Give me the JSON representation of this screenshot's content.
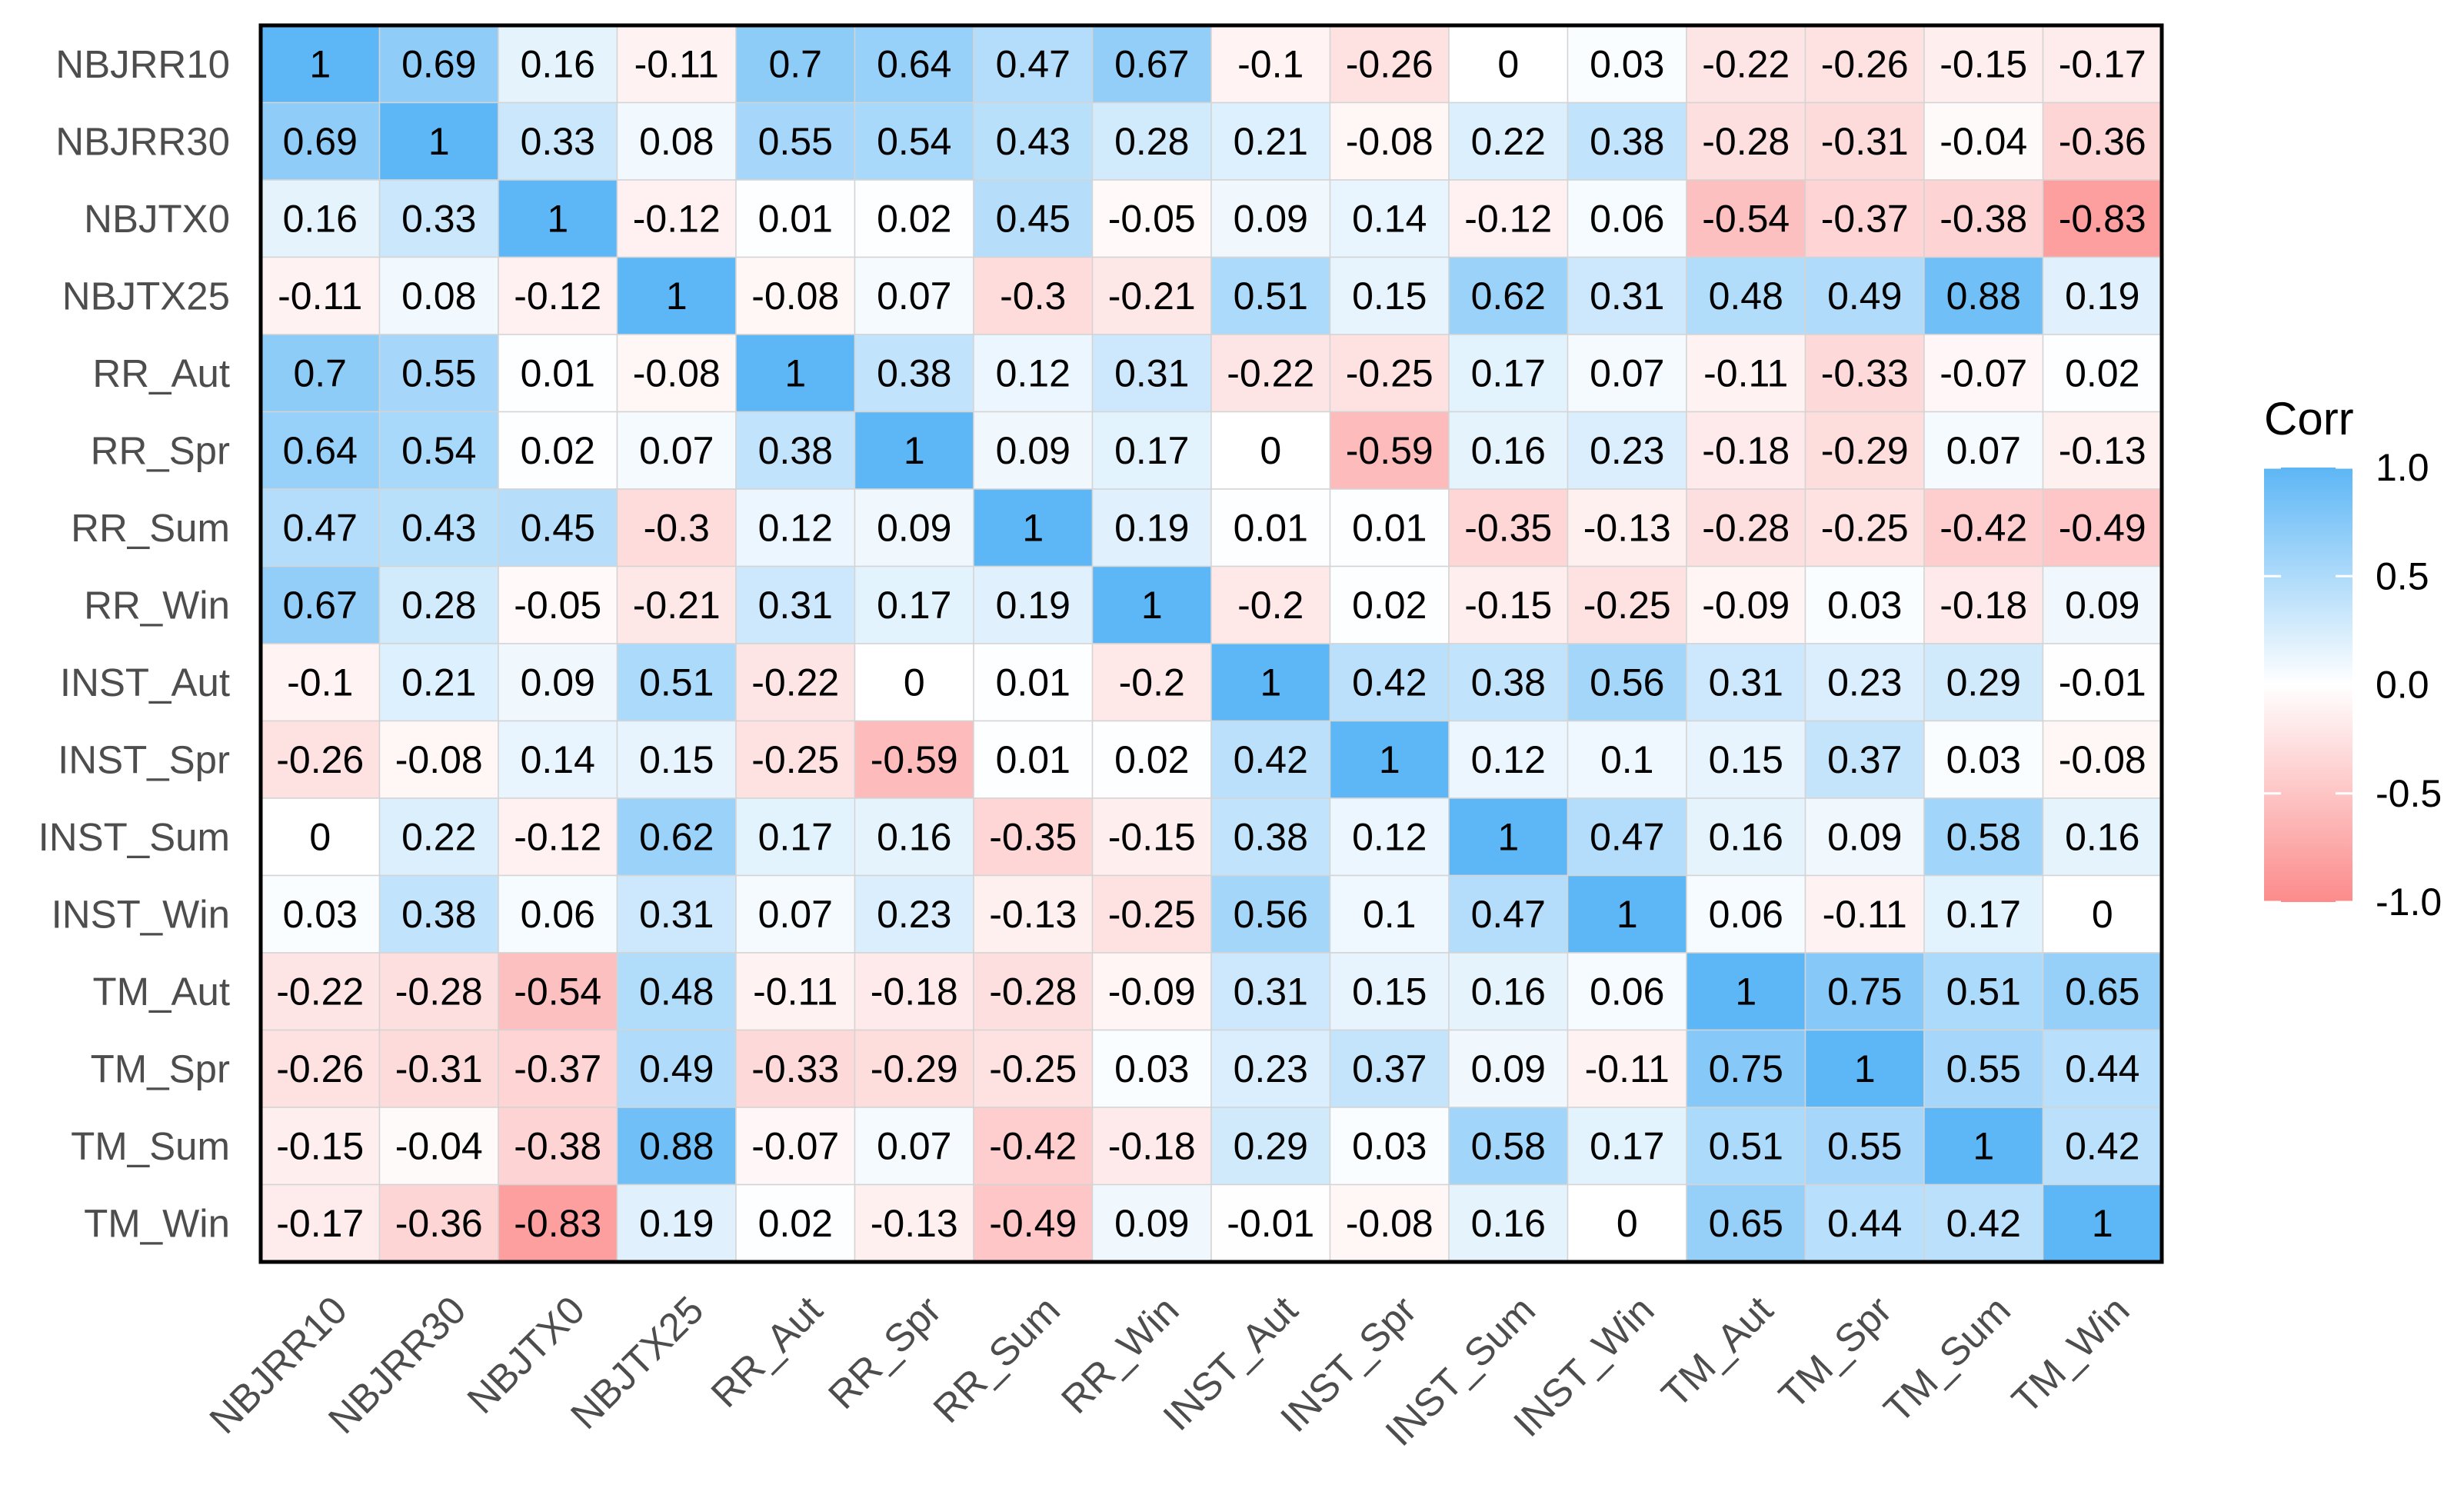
{
  "chart_data": {
    "type": "heatmap",
    "title": "",
    "xlabel": "",
    "ylabel": "",
    "variables": [
      "NBJRR10",
      "NBJRR30",
      "NBJTX0",
      "NBJTX25",
      "RR_Aut",
      "RR_Spr",
      "RR_Sum",
      "RR_Win",
      "INST_Aut",
      "INST_Spr",
      "INST_Sum",
      "INST_Win",
      "TM_Aut",
      "TM_Spr",
      "TM_Sum",
      "TM_Win"
    ],
    "matrix": [
      [
        1,
        0.69,
        0.16,
        -0.11,
        0.7,
        0.64,
        0.47,
        0.67,
        -0.1,
        -0.26,
        0,
        0.03,
        -0.22,
        -0.26,
        -0.15,
        -0.17
      ],
      [
        0.69,
        1,
        0.33,
        0.08,
        0.55,
        0.54,
        0.43,
        0.28,
        0.21,
        -0.08,
        0.22,
        0.38,
        -0.28,
        -0.31,
        -0.04,
        -0.36
      ],
      [
        0.16,
        0.33,
        1,
        -0.12,
        0.01,
        0.02,
        0.45,
        -0.05,
        0.09,
        0.14,
        -0.12,
        0.06,
        -0.54,
        -0.37,
        -0.38,
        -0.83
      ],
      [
        -0.11,
        0.08,
        -0.12,
        1,
        -0.08,
        0.07,
        -0.3,
        -0.21,
        0.51,
        0.15,
        0.62,
        0.31,
        0.48,
        0.49,
        0.88,
        0.19
      ],
      [
        0.7,
        0.55,
        0.01,
        -0.08,
        1,
        0.38,
        0.12,
        0.31,
        -0.22,
        -0.25,
        0.17,
        0.07,
        -0.11,
        -0.33,
        -0.07,
        0.02
      ],
      [
        0.64,
        0.54,
        0.02,
        0.07,
        0.38,
        1,
        0.09,
        0.17,
        0,
        -0.59,
        0.16,
        0.23,
        -0.18,
        -0.29,
        0.07,
        -0.13
      ],
      [
        0.47,
        0.43,
        0.45,
        -0.3,
        0.12,
        0.09,
        1,
        0.19,
        0.01,
        0.01,
        -0.35,
        -0.13,
        -0.28,
        -0.25,
        -0.42,
        -0.49
      ],
      [
        0.67,
        0.28,
        -0.05,
        -0.21,
        0.31,
        0.17,
        0.19,
        1,
        -0.2,
        0.02,
        -0.15,
        -0.25,
        -0.09,
        0.03,
        -0.18,
        0.09
      ],
      [
        -0.1,
        0.21,
        0.09,
        0.51,
        -0.22,
        0,
        0.01,
        -0.2,
        1,
        0.42,
        0.38,
        0.56,
        0.31,
        0.23,
        0.29,
        -0.01
      ],
      [
        -0.26,
        -0.08,
        0.14,
        0.15,
        -0.25,
        -0.59,
        0.01,
        0.02,
        0.42,
        1,
        0.12,
        0.1,
        0.15,
        0.37,
        0.03,
        -0.08
      ],
      [
        0,
        0.22,
        -0.12,
        0.62,
        0.17,
        0.16,
        -0.35,
        -0.15,
        0.38,
        0.12,
        1,
        0.47,
        0.16,
        0.09,
        0.58,
        0.16
      ],
      [
        0.03,
        0.38,
        0.06,
        0.31,
        0.07,
        0.23,
        -0.13,
        -0.25,
        0.56,
        0.1,
        0.47,
        1,
        0.06,
        -0.11,
        0.17,
        0
      ],
      [
        -0.22,
        -0.28,
        -0.54,
        0.48,
        -0.11,
        -0.18,
        -0.28,
        -0.09,
        0.31,
        0.15,
        0.16,
        0.06,
        1,
        0.75,
        0.51,
        0.65
      ],
      [
        -0.26,
        -0.31,
        -0.37,
        0.49,
        -0.33,
        -0.29,
        -0.25,
        0.03,
        0.23,
        0.37,
        0.09,
        -0.11,
        0.75,
        1,
        0.55,
        0.44
      ],
      [
        -0.15,
        -0.04,
        -0.38,
        0.88,
        -0.07,
        0.07,
        -0.42,
        -0.18,
        0.29,
        0.03,
        0.58,
        0.17,
        0.51,
        0.55,
        1,
        0.42
      ],
      [
        -0.17,
        -0.36,
        -0.83,
        0.19,
        0.02,
        -0.13,
        -0.49,
        0.09,
        -0.01,
        -0.08,
        0.16,
        0,
        0.65,
        0.44,
        0.42,
        1
      ]
    ],
    "value_range": [
      -1.0,
      1.0
    ],
    "legend": {
      "title": "Corr",
      "position": "right",
      "ticks": [
        "1.0",
        "0.5",
        "0.0",
        "-0.5",
        "-1.0"
      ],
      "tick_values": [
        1.0,
        0.5,
        0.0,
        -0.5,
        -1.0
      ]
    },
    "colors": {
      "high": "#5db6f5",
      "mid": "#ffffff",
      "low": "#fc8b8b",
      "grid": "#d4d4d4",
      "border": "#000000",
      "label": "#4d4d4d"
    }
  }
}
